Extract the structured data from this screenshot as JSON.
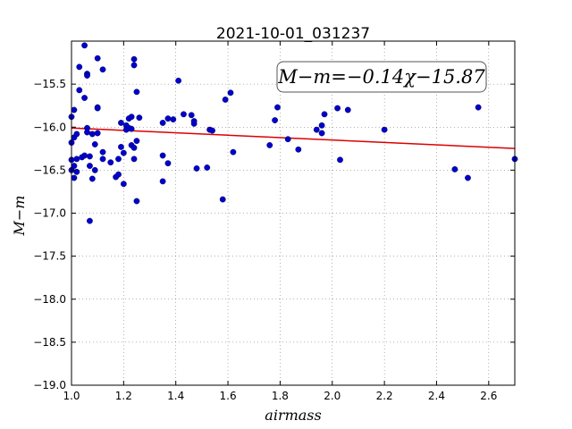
{
  "chart_data": {
    "type": "scatter",
    "title": "2021-10-01_031237",
    "xlabel": "airmass",
    "ylabel": "M−m",
    "xlim": [
      1.0,
      2.7
    ],
    "ylim": [
      -19.0,
      -15.0
    ],
    "y_inverted": true,
    "grid": true,
    "x_ticks": [
      1.0,
      1.2,
      1.4,
      1.6,
      1.8,
      2.0,
      2.2,
      2.4,
      2.6
    ],
    "x_tick_labels": [
      "1.0",
      "1.2",
      "1.4",
      "1.6",
      "1.8",
      "2.0",
      "2.2",
      "2.4",
      "2.6"
    ],
    "y_ticks": [
      -15.5,
      -16.0,
      -16.5,
      -17.0,
      -17.5,
      -18.0,
      -18.5,
      -19.0
    ],
    "y_tick_labels": [
      "−15.5",
      "−16.0",
      "−16.5",
      "−17.0",
      "−17.5",
      "−18.0",
      "−18.5",
      "−19.0"
    ],
    "annotation": "M−m=−0.14χ−15.87",
    "fit_line": {
      "slope": -0.14,
      "intercept": -15.87,
      "color": "#dd0000"
    },
    "point_color": "#0000cc",
    "points": [
      [
        1.0,
        -15.88
      ],
      [
        1.01,
        -15.8
      ],
      [
        1.01,
        -16.12
      ],
      [
        1.0,
        -16.18
      ],
      [
        1.02,
        -16.08
      ],
      [
        1.0,
        -16.38
      ],
      [
        1.01,
        -16.45
      ],
      [
        1.02,
        -16.37
      ],
      [
        1.03,
        -15.3
      ],
      [
        1.03,
        -15.57
      ],
      [
        1.05,
        -15.05
      ],
      [
        1.06,
        -15.38
      ],
      [
        1.06,
        -15.4
      ],
      [
        1.05,
        -15.66
      ],
      [
        1.0,
        -16.5
      ],
      [
        1.01,
        -16.59
      ],
      [
        1.02,
        -16.52
      ],
      [
        1.04,
        -16.35
      ],
      [
        1.06,
        -16.01
      ],
      [
        1.06,
        -16.06
      ],
      [
        1.07,
        -16.34
      ],
      [
        1.07,
        -16.45
      ],
      [
        1.08,
        -16.6
      ],
      [
        1.08,
        -16.08
      ],
      [
        1.09,
        -16.2
      ],
      [
        1.09,
        -16.5
      ],
      [
        1.1,
        -16.07
      ],
      [
        1.1,
        -15.2
      ],
      [
        1.1,
        -15.77
      ],
      [
        1.1,
        -15.78
      ],
      [
        1.12,
        -15.33
      ],
      [
        1.12,
        -16.29
      ],
      [
        1.12,
        -16.37
      ],
      [
        1.15,
        -16.41
      ],
      [
        1.07,
        -17.09
      ],
      [
        1.05,
        -16.33
      ],
      [
        1.17,
        -16.58
      ],
      [
        1.18,
        -16.37
      ],
      [
        1.18,
        -16.55
      ],
      [
        1.19,
        -15.95
      ],
      [
        1.19,
        -16.23
      ],
      [
        1.2,
        -16.66
      ],
      [
        1.2,
        -16.3
      ],
      [
        1.21,
        -15.98
      ],
      [
        1.21,
        -16.03
      ],
      [
        1.22,
        -15.9
      ],
      [
        1.22,
        -16.01
      ],
      [
        1.23,
        -15.88
      ],
      [
        1.23,
        -16.21
      ],
      [
        1.23,
        -16.02
      ],
      [
        1.24,
        -16.24
      ],
      [
        1.24,
        -15.28
      ],
      [
        1.24,
        -15.21
      ],
      [
        1.24,
        -16.37
      ],
      [
        1.25,
        -15.59
      ],
      [
        1.25,
        -16.16
      ],
      [
        1.25,
        -16.86
      ],
      [
        1.26,
        -15.89
      ],
      [
        1.35,
        -15.95
      ],
      [
        1.35,
        -16.33
      ],
      [
        1.35,
        -16.63
      ],
      [
        1.37,
        -16.42
      ],
      [
        1.37,
        -15.9
      ],
      [
        1.39,
        -15.91
      ],
      [
        1.41,
        -15.46
      ],
      [
        1.43,
        -15.85
      ],
      [
        1.46,
        -15.86
      ],
      [
        1.47,
        -15.96
      ],
      [
        1.47,
        -15.93
      ],
      [
        1.48,
        -16.48
      ],
      [
        1.52,
        -16.47
      ],
      [
        1.53,
        -16.03
      ],
      [
        1.54,
        -16.04
      ],
      [
        1.58,
        -16.84
      ],
      [
        1.59,
        -15.68
      ],
      [
        1.61,
        -15.6
      ],
      [
        1.62,
        -16.29
      ],
      [
        1.76,
        -16.21
      ],
      [
        1.78,
        -15.92
      ],
      [
        1.79,
        -15.77
      ],
      [
        1.83,
        -16.14
      ],
      [
        1.87,
        -16.26
      ],
      [
        1.94,
        -16.03
      ],
      [
        1.96,
        -15.98
      ],
      [
        1.97,
        -15.85
      ],
      [
        1.96,
        -16.07
      ],
      [
        2.02,
        -15.78
      ],
      [
        2.03,
        -16.38
      ],
      [
        2.06,
        -15.8
      ],
      [
        2.2,
        -16.03
      ],
      [
        2.47,
        -16.49
      ],
      [
        2.52,
        -16.59
      ],
      [
        2.56,
        -15.77
      ],
      [
        2.7,
        -16.37
      ]
    ]
  }
}
